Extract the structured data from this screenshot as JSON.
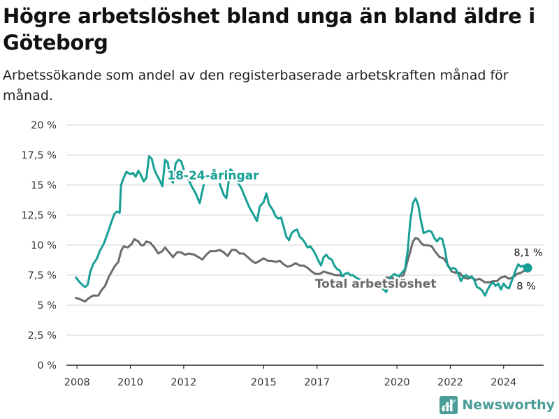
{
  "header": {
    "title": "Högre arbetslöshet bland unga än bland äldre i Göteborg",
    "subtitle": "Arbetssökande som andel av den registerbaserade arbetskraften månad för månad."
  },
  "brand": {
    "name": "Newsworthy",
    "color": "#4a9c98",
    "icon": "newsworthy-logo-icon"
  },
  "colors": {
    "youth": "#169f94",
    "total": "#6b6b6b",
    "grid": "#d6d6d6",
    "axis": "#222222"
  },
  "chart_data": {
    "type": "line",
    "title": "Högre arbetslöshet bland unga än bland äldre i Göteborg",
    "subtitle": "Arbetssökande som andel av den registerbaserade arbetskraften månad för månad.",
    "xlabel": "",
    "ylabel": "",
    "xlim": [
      2007.6,
      2025.5
    ],
    "ylim": [
      0,
      20
    ],
    "grid": true,
    "legend": "none",
    "x_ticks": [
      2008,
      2010,
      2012,
      2015,
      2017,
      2020,
      2022,
      2024
    ],
    "x_tick_labels": [
      "2008",
      "2010",
      "2012",
      "2015",
      "2017",
      "2020",
      "2022",
      "2024"
    ],
    "y_ticks": [
      0,
      2.5,
      5,
      7.5,
      10,
      12.5,
      15,
      17.5,
      20
    ],
    "y_tick_labels": [
      "0 %",
      "2,5 %",
      "5 %",
      "7,5 %",
      "10 %",
      "12,5 %",
      "15 %",
      "17,5 %",
      "20 %"
    ],
    "series": [
      {
        "name": "18-24-åringar",
        "color": "#169f94",
        "end_label": "8,1 %",
        "segments": [
          [
            [
              2007.96,
              7.3
            ],
            [
              2008.1,
              6.9
            ],
            [
              2008.3,
              6.5
            ],
            [
              2008.4,
              6.7
            ],
            [
              2008.5,
              7.8
            ],
            [
              2008.6,
              8.4
            ],
            [
              2008.75,
              8.9
            ],
            [
              2008.85,
              9.5
            ],
            [
              2009.0,
              10.1
            ],
            [
              2009.15,
              11.0
            ],
            [
              2009.3,
              12.0
            ],
            [
              2009.4,
              12.6
            ],
            [
              2009.5,
              12.8
            ],
            [
              2009.6,
              12.7
            ],
            [
              2009.65,
              15.0
            ],
            [
              2009.75,
              15.6
            ],
            [
              2009.85,
              16.1
            ],
            [
              2010.0,
              15.9
            ],
            [
              2010.1,
              16.0
            ],
            [
              2010.2,
              15.7
            ],
            [
              2010.3,
              16.2
            ],
            [
              2010.4,
              15.8
            ],
            [
              2010.5,
              15.3
            ],
            [
              2010.6,
              15.6
            ],
            [
              2010.7,
              17.4
            ],
            [
              2010.8,
              17.2
            ],
            [
              2010.9,
              16.3
            ],
            [
              2011.0,
              15.8
            ],
            [
              2011.1,
              15.4
            ],
            [
              2011.2,
              14.9
            ],
            [
              2011.3,
              17.1
            ],
            [
              2011.4,
              16.9
            ],
            [
              2011.5,
              15.5
            ],
            [
              2011.6,
              15.2
            ],
            [
              2011.7,
              16.8
            ],
            [
              2011.8,
              17.1
            ],
            [
              2011.9,
              17.0
            ],
            [
              2012.0,
              16.3
            ]
          ],
          [
            [
              2012.15,
              15.6
            ],
            [
              2012.3,
              14.9
            ],
            [
              2012.45,
              14.3
            ],
            [
              2012.6,
              13.5
            ],
            [
              2012.75,
              15.0
            ]
          ],
          [
            [
              2013.35,
              15.1
            ],
            [
              2013.5,
              14.2
            ],
            [
              2013.6,
              13.9
            ],
            [
              2013.75,
              16.3
            ],
            [
              2013.85,
              16.1
            ],
            [
              2014.0,
              15.3
            ],
            [
              2014.15,
              14.8
            ],
            [
              2014.3,
              14.0
            ],
            [
              2014.45,
              13.2
            ],
            [
              2014.6,
              12.6
            ],
            [
              2014.75,
              12.0
            ],
            [
              2014.85,
              13.2
            ],
            [
              2015.0,
              13.6
            ],
            [
              2015.1,
              14.3
            ],
            [
              2015.2,
              13.4
            ],
            [
              2015.35,
              12.9
            ],
            [
              2015.45,
              12.4
            ],
            [
              2015.55,
              12.2
            ],
            [
              2015.65,
              12.3
            ],
            [
              2015.75,
              11.5
            ],
            [
              2015.85,
              10.7
            ],
            [
              2015.95,
              10.4
            ],
            [
              2016.05,
              11.0
            ],
            [
              2016.15,
              11.2
            ],
            [
              2016.25,
              11.3
            ],
            [
              2016.35,
              10.7
            ],
            [
              2016.45,
              10.5
            ],
            [
              2016.55,
              10.2
            ],
            [
              2016.65,
              9.8
            ],
            [
              2016.75,
              9.9
            ],
            [
              2016.85,
              9.6
            ],
            [
              2016.95,
              9.2
            ],
            [
              2017.05,
              8.7
            ],
            [
              2017.15,
              8.3
            ],
            [
              2017.25,
              9.0
            ],
            [
              2017.35,
              9.2
            ],
            [
              2017.45,
              8.9
            ],
            [
              2017.55,
              8.8
            ],
            [
              2017.65,
              8.3
            ],
            [
              2017.75,
              8.0
            ],
            [
              2017.85,
              7.9
            ],
            [
              2017.95,
              7.4
            ],
            [
              2018.05,
              7.6
            ],
            [
              2018.15,
              7.7
            ],
            [
              2018.25,
              7.5
            ],
            [
              2018.35,
              7.5
            ],
            [
              2018.45,
              7.3
            ],
            [
              2018.55,
              7.2
            ],
            [
              2018.65,
              7.1
            ]
          ],
          [
            [
              2019.45,
              6.4
            ],
            [
              2019.6,
              6.1
            ],
            [
              2019.75,
              7.3
            ],
            [
              2019.9,
              7.6
            ],
            [
              2020.05,
              7.4
            ],
            [
              2020.15,
              7.6
            ],
            [
              2020.3,
              8.0
            ],
            [
              2020.4,
              9.5
            ],
            [
              2020.5,
              12.0
            ],
            [
              2020.6,
              13.5
            ],
            [
              2020.7,
              13.9
            ],
            [
              2020.8,
              13.3
            ],
            [
              2020.9,
              12.0
            ],
            [
              2021.0,
              11.0
            ],
            [
              2021.1,
              11.1
            ],
            [
              2021.2,
              11.2
            ],
            [
              2021.3,
              11.1
            ],
            [
              2021.4,
              10.6
            ],
            [
              2021.5,
              10.3
            ],
            [
              2021.6,
              10.6
            ],
            [
              2021.7,
              10.5
            ],
            [
              2021.8,
              9.6
            ],
            [
              2021.9,
              8.3
            ],
            [
              2022.0,
              8.0
            ],
            [
              2022.1,
              8.1
            ],
            [
              2022.2,
              8.0
            ],
            [
              2022.3,
              7.6
            ],
            [
              2022.4,
              7.0
            ],
            [
              2022.5,
              7.4
            ],
            [
              2022.6,
              7.5
            ],
            [
              2022.7,
              7.3
            ],
            [
              2022.8,
              7.4
            ],
            [
              2022.9,
              7.1
            ],
            [
              2023.0,
              6.5
            ],
            [
              2023.1,
              6.4
            ],
            [
              2023.2,
              6.2
            ],
            [
              2023.3,
              5.8
            ],
            [
              2023.4,
              6.3
            ],
            [
              2023.5,
              6.7
            ],
            [
              2023.6,
              6.9
            ],
            [
              2023.7,
              6.6
            ],
            [
              2023.8,
              6.8
            ],
            [
              2023.9,
              6.3
            ],
            [
              2024.0,
              6.8
            ],
            [
              2024.1,
              6.5
            ],
            [
              2024.2,
              6.4
            ],
            [
              2024.3,
              7.0
            ],
            [
              2024.45,
              7.9
            ],
            [
              2024.55,
              8.4
            ],
            [
              2024.65,
              8.2
            ],
            [
              2024.75,
              8.3
            ],
            [
              2024.9,
              8.1
            ]
          ]
        ]
      },
      {
        "name": "Total arbetslöshet",
        "color": "#6b6b6b",
        "end_label": "8 %",
        "segments": [
          [
            [
              2007.96,
              5.6
            ],
            [
              2008.1,
              5.5
            ],
            [
              2008.3,
              5.3
            ],
            [
              2008.45,
              5.6
            ],
            [
              2008.6,
              5.8
            ],
            [
              2008.8,
              5.8
            ],
            [
              2008.9,
              6.2
            ],
            [
              2009.05,
              6.6
            ],
            [
              2009.2,
              7.4
            ],
            [
              2009.4,
              8.2
            ],
            [
              2009.55,
              8.6
            ],
            [
              2009.65,
              9.5
            ],
            [
              2009.75,
              9.9
            ],
            [
              2009.9,
              9.8
            ],
            [
              2010.05,
              10.1
            ],
            [
              2010.15,
              10.5
            ],
            [
              2010.3,
              10.3
            ],
            [
              2010.4,
              10.0
            ],
            [
              2010.5,
              10.0
            ],
            [
              2010.6,
              10.3
            ],
            [
              2010.75,
              10.2
            ],
            [
              2010.9,
              9.8
            ],
            [
              2011.05,
              9.3
            ],
            [
              2011.2,
              9.5
            ],
            [
              2011.3,
              9.8
            ],
            [
              2011.45,
              9.4
            ],
            [
              2011.6,
              9.0
            ],
            [
              2011.75,
              9.4
            ],
            [
              2011.9,
              9.4
            ],
            [
              2012.05,
              9.2
            ],
            [
              2012.2,
              9.3
            ],
            [
              2012.4,
              9.2
            ],
            [
              2012.55,
              9.0
            ],
            [
              2012.7,
              8.8
            ],
            [
              2012.85,
              9.2
            ],
            [
              2013.0,
              9.5
            ],
            [
              2013.2,
              9.5
            ],
            [
              2013.35,
              9.6
            ],
            [
              2013.5,
              9.4
            ],
            [
              2013.65,
              9.1
            ],
            [
              2013.8,
              9.6
            ],
            [
              2013.95,
              9.6
            ],
            [
              2014.1,
              9.3
            ],
            [
              2014.25,
              9.3
            ],
            [
              2014.4,
              9.0
            ],
            [
              2014.55,
              8.7
            ],
            [
              2014.7,
              8.5
            ],
            [
              2014.85,
              8.7
            ],
            [
              2015.0,
              8.9
            ],
            [
              2015.15,
              8.7
            ],
            [
              2015.3,
              8.7
            ],
            [
              2015.45,
              8.6
            ],
            [
              2015.6,
              8.7
            ],
            [
              2015.75,
              8.4
            ],
            [
              2015.9,
              8.2
            ],
            [
              2016.05,
              8.3
            ],
            [
              2016.2,
              8.5
            ],
            [
              2016.35,
              8.3
            ],
            [
              2016.5,
              8.3
            ],
            [
              2016.65,
              8.1
            ],
            [
              2016.8,
              7.8
            ],
            [
              2016.95,
              7.6
            ],
            [
              2017.1,
              7.6
            ],
            [
              2017.25,
              7.8
            ],
            [
              2017.4,
              7.7
            ],
            [
              2017.55,
              7.6
            ],
            [
              2017.7,
              7.5
            ],
            [
              2017.85,
              7.5
            ],
            [
              2018.0,
              7.4
            ]
          ],
          [
            [
              2019.6,
              7.3
            ],
            [
              2019.75,
              7.3
            ],
            [
              2019.9,
              7.2
            ],
            [
              2020.1,
              7.3
            ],
            [
              2020.25,
              7.5
            ],
            [
              2020.4,
              8.7
            ],
            [
              2020.5,
              9.5
            ],
            [
              2020.6,
              10.3
            ],
            [
              2020.7,
              10.6
            ],
            [
              2020.8,
              10.5
            ],
            [
              2020.9,
              10.2
            ],
            [
              2021.0,
              10.0
            ],
            [
              2021.15,
              10.0
            ],
            [
              2021.3,
              9.9
            ],
            [
              2021.45,
              9.4
            ],
            [
              2021.6,
              9.0
            ],
            [
              2021.75,
              8.9
            ],
            [
              2021.9,
              8.4
            ],
            [
              2022.05,
              7.8
            ],
            [
              2022.2,
              7.7
            ],
            [
              2022.35,
              7.7
            ],
            [
              2022.5,
              7.3
            ],
            [
              2022.65,
              7.2
            ],
            [
              2022.8,
              7.3
            ],
            [
              2022.95,
              7.1
            ],
            [
              2023.1,
              7.2
            ],
            [
              2023.3,
              6.9
            ],
            [
              2023.45,
              6.9
            ],
            [
              2023.6,
              7.0
            ],
            [
              2023.75,
              7.0
            ],
            [
              2023.9,
              7.3
            ],
            [
              2024.05,
              7.4
            ],
            [
              2024.2,
              7.2
            ],
            [
              2024.35,
              7.3
            ],
            [
              2024.5,
              7.6
            ],
            [
              2024.65,
              7.7
            ],
            [
              2024.8,
              7.9
            ],
            [
              2024.9,
              8.0
            ]
          ]
        ]
      }
    ],
    "annotations": [
      {
        "id": "youth-label",
        "text": "18-24-åringar",
        "x": 2013.1,
        "y": 15.8,
        "series": 0
      },
      {
        "id": "total-label",
        "text": "Total arbetslöshet",
        "x": 2019.2,
        "y": 6.8,
        "series": 1
      }
    ]
  }
}
